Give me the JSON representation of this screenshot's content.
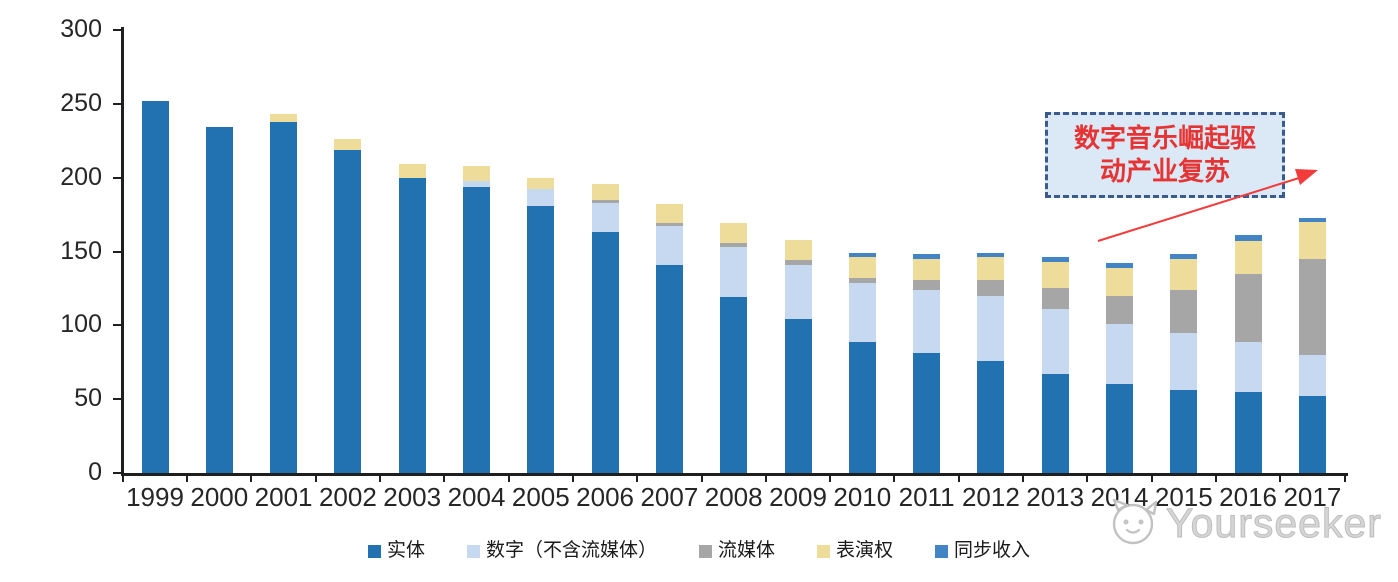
{
  "chart_data": {
    "type": "bar",
    "stacked": true,
    "title": "",
    "xlabel": "",
    "ylabel": "",
    "ylim": [
      0,
      300
    ],
    "yticks": [
      0,
      50,
      100,
      150,
      200,
      250,
      300
    ],
    "grid": false,
    "legend_position": "bottom",
    "categories": [
      "1999",
      "2000",
      "2001",
      "2002",
      "2003",
      "2004",
      "2005",
      "2006",
      "2007",
      "2008",
      "2009",
      "2010",
      "2011",
      "2012",
      "2013",
      "2014",
      "2015",
      "2016",
      "2017"
    ],
    "series": [
      {
        "name": "实体",
        "color": "#2272b2",
        "values": [
          252,
          234,
          238,
          219,
          200,
          194,
          181,
          163,
          141,
          119,
          104,
          89,
          81,
          76,
          67,
          60,
          56,
          55,
          52
        ]
      },
      {
        "name": "数字（不含流媒体）",
        "color": "#c6d9f0",
        "values": [
          0,
          0,
          0,
          0,
          0,
          4,
          11,
          20,
          26,
          34,
          37,
          40,
          43,
          44,
          44,
          41,
          39,
          34,
          28
        ]
      },
      {
        "name": "流媒体",
        "color": "#a6a6a6",
        "values": [
          0,
          0,
          0,
          0,
          0,
          0,
          0,
          2,
          2,
          3,
          3,
          3,
          7,
          11,
          14,
          19,
          29,
          46,
          65
        ]
      },
      {
        "name": "表演权",
        "color": "#eedc9a",
        "values": [
          0,
          0,
          5,
          7,
          9,
          10,
          8,
          11,
          13,
          13,
          14,
          14,
          14,
          15,
          18,
          19,
          21,
          22,
          25
        ]
      },
      {
        "name": "同步收入",
        "color": "#4384c4",
        "values": [
          0,
          0,
          0,
          0,
          0,
          0,
          0,
          0,
          0,
          0,
          0,
          3,
          3,
          3,
          3,
          3,
          3,
          4,
          3
        ]
      }
    ]
  },
  "annotation": {
    "line1": "数字音乐崛起驱",
    "line2": "动产业复苏"
  },
  "watermark": {
    "text": "Yourseeker",
    "icon": "cat-logo"
  },
  "colors": {
    "axis": "#1f1f1f",
    "tick_label": "#262626",
    "annotation_text": "#e63333",
    "annotation_fill": "#dbe8f6",
    "annotation_border": "#3a5b8c",
    "arrow": "#f23b3b",
    "watermark": "#c2c2c2"
  }
}
